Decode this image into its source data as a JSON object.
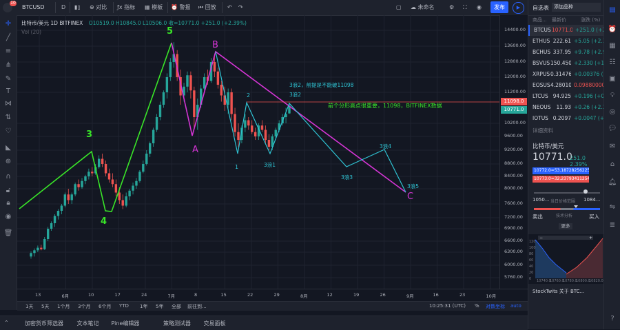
{
  "topbar": {
    "symbol": "BTCUSD",
    "interval": "D",
    "compare": "对比",
    "indicators": "指标",
    "templates": "模板",
    "alert": "警报",
    "replay": "回放",
    "unnamed": "未命名",
    "publish": "发布"
  },
  "legend": {
    "title": "比特币/美元  1D  BITFINEX",
    "ohlc": "O10519.0  H10845.0  L10506.0  收=10771.0  +251.0 (+2.39%)",
    "volume": "Vol (20)"
  },
  "price_axis": {
    "ticks": [
      "14400.00",
      "13600.00",
      "12800.00",
      "12000.00",
      "11200.00",
      "10200.00",
      "9600.00",
      "9200.00",
      "8800.00",
      "8400.00",
      "8000.00",
      "7600.00",
      "7200.00",
      "6900.00",
      "6600.00",
      "6300.00",
      "6000.00",
      "5760.00"
    ],
    "tag_red": "11098.0",
    "tag_current": "10771.0"
  },
  "time_axis": {
    "ticks": [
      "13",
      "6月",
      "10",
      "17",
      "24",
      "7月",
      "8",
      "15",
      "22",
      "29",
      "8月",
      "12",
      "19",
      "26",
      "9月",
      "16",
      "23",
      "10月"
    ]
  },
  "range_bar": {
    "ranges": [
      "1天",
      "5天",
      "1个月",
      "3个月",
      "6个月",
      "YTD",
      "1年",
      "5年",
      "全部",
      "前往到..."
    ],
    "clock": "10:25:31 (UTC)",
    "pct": "%",
    "log": "对数坐标",
    "auto": "auto"
  },
  "bottom_tabs": [
    "加密货币筛选器",
    "文本笔记",
    "Pine编辑器",
    "策略测试器",
    "交易面板"
  ],
  "annotations": {
    "w3": "3",
    "w4": "4",
    "w5": "5",
    "a": "A",
    "b": "B",
    "c": "C",
    "sub1": "1",
    "sub2": "2",
    "s31": "3浪1",
    "s32": "3浪2",
    "s33": "3浪3",
    "s34": "3浪4",
    "s35": "3浪5",
    "note_top": "3浪2，前提是不能破11098",
    "note_mid": "前个分形高点很重要，11098，BITFINEX数据"
  },
  "watchlist": {
    "header": "自选表",
    "add": "添加品种",
    "col_symbol": "商品...",
    "col_last": "最新价",
    "col_change": "涨跌 (%)",
    "rows": [
      {
        "sym": "BTCUS",
        "last": "10771.0",
        "chg": "+251.0 (+2.39%)",
        "last_color": "#ef5350"
      },
      {
        "sym": "ETHUS",
        "last": "222.61",
        "chg": "+5.05 (+2.32%)",
        "last_color": "#d1d4dc"
      },
      {
        "sym": "BCHUS",
        "last": "337.95",
        "chg": "+9.78 (+2.98%)",
        "last_color": "#d1d4dc"
      },
      {
        "sym": "BSVUS",
        "last": "150.450",
        "chg": "+2.330 (+1.57%)",
        "last_color": "#d1d4dc"
      },
      {
        "sym": "XRPUS",
        "last": "0.31476",
        "chg": "+0.00376 (+1.2",
        "last_color": "#d1d4dc"
      },
      {
        "sym": "EOSUS",
        "last": "4.28010000",
        "chg": "0.09880000 (-2.",
        "last_color": "#d1d4dc"
      },
      {
        "sym": "LTCUS",
        "last": "94.925",
        "chg": "+0.196 (+0.21%",
        "last_color": "#d1d4dc"
      },
      {
        "sym": "NEOUS",
        "last": "11.93",
        "chg": "+0.26 (+2.26%)",
        "last_color": "#d1d4dc"
      },
      {
        "sym": "IOTUS",
        "last": "0.2097",
        "chg": "+0.0047 (+2.3",
        "last_color": "#d1d4dc"
      }
    ]
  },
  "details": {
    "header": "详细资料",
    "name": "比特币/美元",
    "price": "10771.0",
    "change": "251.0  2.39%",
    "bid": "10772.0=53.18728256225586",
    "ask": "10773.0=32.23793411254883",
    "low": "1050...",
    "high": "1084...",
    "range_label": "当日价格范围",
    "tech_label": "技术分析",
    "sell": "卖出",
    "buy": "买入",
    "more": "更多",
    "depth_x": [
      "10740.0",
      "10760.0",
      "10780.0",
      "10800.0",
      "10820.0"
    ],
    "depth_y": [
      "120",
      "100",
      "80",
      "60",
      "40",
      "20",
      "0"
    ],
    "stocktwits": "StockTwits 关于 BTC..."
  },
  "colors": {
    "bull": "#26a69a",
    "bear": "#ef5350",
    "green_line": "#39e628",
    "magenta_line": "#d535d5",
    "cyan_line": "#2fc4d4",
    "accent": "#2962ff"
  },
  "candles": [
    [
      6200,
      6320,
      6150,
      6280
    ],
    [
      6280,
      6400,
      6200,
      6350
    ],
    [
      6350,
      6480,
      6300,
      6420
    ],
    [
      6420,
      6500,
      6350,
      6380
    ],
    [
      6380,
      6700,
      6360,
      6650
    ],
    [
      6650,
      6950,
      6600,
      6900
    ],
    [
      6900,
      7100,
      6850,
      7050
    ],
    [
      7050,
      7300,
      6950,
      7250
    ],
    [
      7250,
      7450,
      7150,
      7400
    ],
    [
      7400,
      7600,
      7300,
      7550
    ],
    [
      7550,
      7900,
      7500,
      7850
    ],
    [
      7850,
      8000,
      7600,
      7700
    ],
    [
      7700,
      7900,
      7600,
      7850
    ],
    [
      7850,
      8200,
      7800,
      8150
    ],
    [
      8150,
      8300,
      7950,
      8050
    ],
    [
      8050,
      8350,
      8000,
      8250
    ],
    [
      8250,
      8450,
      8150,
      8400
    ],
    [
      8400,
      8650,
      8300,
      8550
    ],
    [
      8550,
      8700,
      8400,
      8500
    ],
    [
      8500,
      8800,
      8450,
      8700
    ],
    [
      8700,
      9050,
      8650,
      8950
    ],
    [
      8950,
      9100,
      8700,
      8800
    ],
    [
      8800,
      8900,
      8400,
      8500
    ],
    [
      8500,
      8650,
      8200,
      8300
    ],
    [
      8300,
      8500,
      8050,
      8150
    ],
    [
      8150,
      8300,
      7800,
      7900
    ],
    [
      7900,
      8050,
      7600,
      7700
    ],
    [
      7700,
      7850,
      7450,
      7550
    ],
    [
      7550,
      7900,
      7500,
      7800
    ],
    [
      7800,
      8000,
      7700,
      7950
    ],
    [
      7950,
      8200,
      7850,
      8100
    ],
    [
      8100,
      8350,
      8000,
      8250
    ],
    [
      8250,
      8600,
      8200,
      8550
    ],
    [
      8550,
      8900,
      8500,
      8800
    ],
    [
      8800,
      9200,
      8750,
      9100
    ],
    [
      9100,
      9450,
      9000,
      9400
    ],
    [
      9400,
      10000,
      9300,
      9900
    ],
    [
      9900,
      10500,
      9800,
      10400
    ],
    [
      10400,
      10900,
      10300,
      10800
    ],
    [
      10800,
      11300,
      10700,
      11200
    ],
    [
      11200,
      12200,
      11000,
      12000
    ],
    [
      12000,
      13000,
      11800,
      12800
    ],
    [
      12800,
      13800,
      12500,
      13200
    ],
    [
      13200,
      13400,
      11800,
      12000
    ],
    [
      12000,
      12400,
      10800,
      11100
    ],
    [
      11100,
      11700,
      10900,
      11500
    ],
    [
      11500,
      12300,
      11200,
      12100
    ],
    [
      12100,
      12300,
      11000,
      11300
    ],
    [
      11300,
      11500,
      10000,
      10400
    ],
    [
      10400,
      11000,
      9900,
      10800
    ],
    [
      10800,
      11600,
      10700,
      11400
    ],
    [
      11400,
      12200,
      11300,
      12000
    ],
    [
      12000,
      12400,
      11600,
      11800
    ],
    [
      11800,
      13000,
      11700,
      12800
    ],
    [
      12800,
      13200,
      12000,
      12300
    ],
    [
      12300,
      12500,
      11400,
      11600
    ],
    [
      11600,
      11800,
      10900,
      11100
    ],
    [
      11100,
      11500,
      10600,
      10800
    ],
    [
      10800,
      11400,
      10500,
      11200
    ],
    [
      11200,
      11400,
      10300,
      10500
    ],
    [
      10500,
      10700,
      9600,
      9800
    ],
    [
      9800,
      10200,
      9300,
      9500
    ],
    [
      9500,
      10100,
      9400,
      10000
    ],
    [
      10000,
      10500,
      9800,
      10300
    ],
    [
      10300,
      10400,
      9900,
      10100
    ],
    [
      10100,
      10300,
      9700,
      9800
    ],
    [
      9800,
      10000,
      9500,
      9600
    ],
    [
      9600,
      10200,
      9500,
      10100
    ],
    [
      10100,
      10300,
      9800,
      9900
    ],
    [
      9900,
      10100,
      9400,
      9500
    ],
    [
      9500,
      9700,
      9200,
      9300
    ],
    [
      9300,
      9700,
      9200,
      9600
    ],
    [
      9600,
      10000,
      9500,
      9900
    ],
    [
      9900,
      10300,
      9800,
      10200
    ],
    [
      10200,
      10500,
      10100,
      10400
    ],
    [
      10400,
      10700,
      10200,
      10500
    ],
    [
      10519,
      10845,
      10506,
      10771
    ]
  ]
}
